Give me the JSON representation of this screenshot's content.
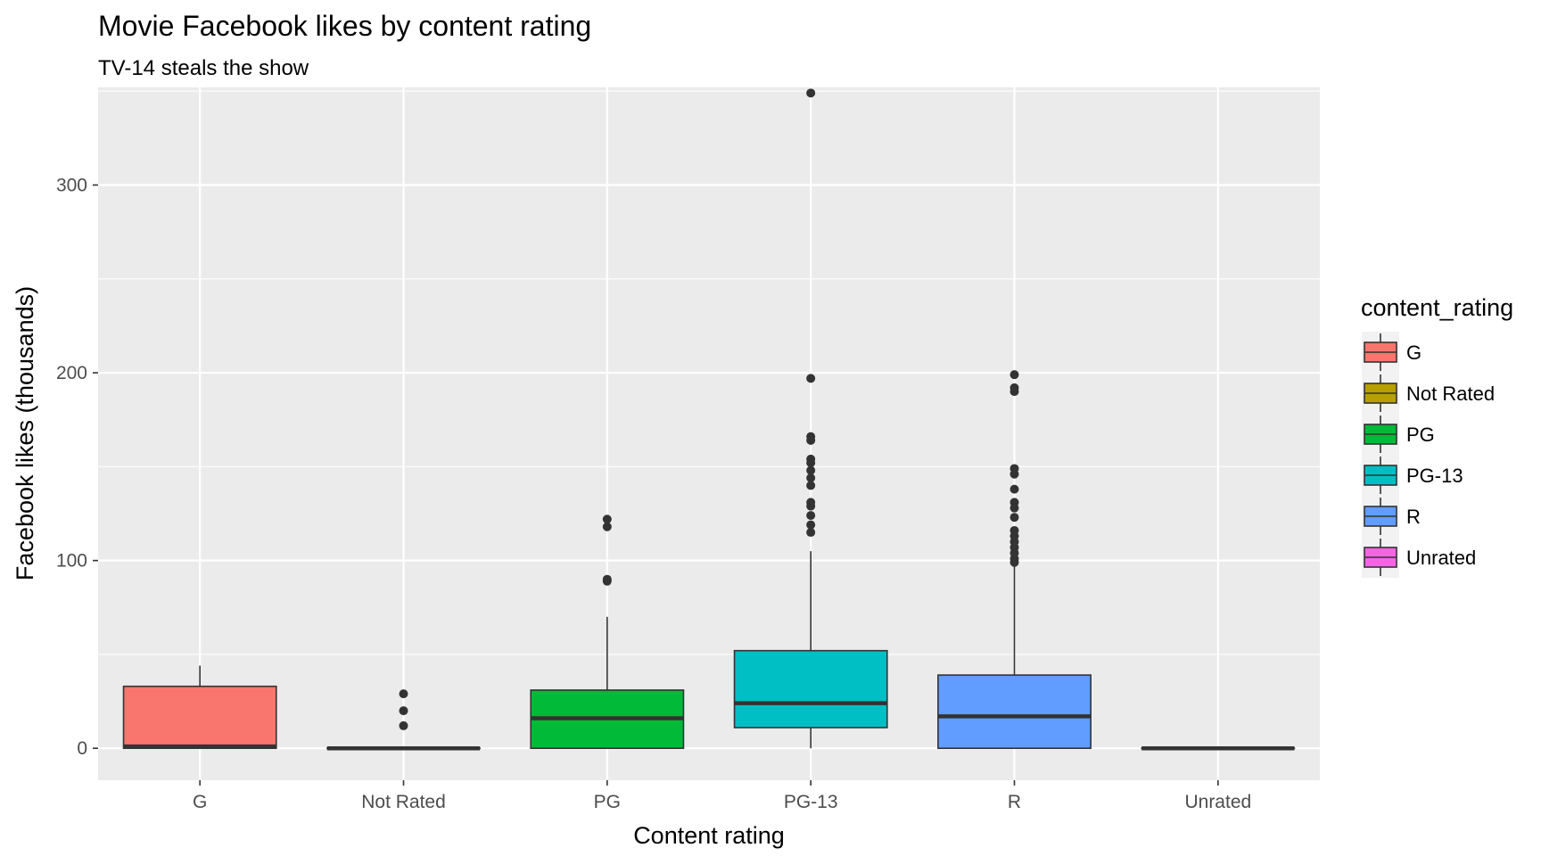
{
  "chart_data": {
    "type": "box",
    "title": "Movie Facebook likes by content rating",
    "subtitle": "TV-14 steals the show",
    "xlabel": "Content rating",
    "ylabel": "Facebook likes (thousands)",
    "ylim": [
      -17,
      352
    ],
    "y_ticks": [
      0,
      100,
      200,
      300
    ],
    "y_tick_labels": [
      "0",
      "100",
      "200",
      "300"
    ],
    "categories": [
      "G",
      "Not Rated",
      "PG",
      "PG-13",
      "R",
      "Unrated"
    ],
    "legend": {
      "title": "content_rating",
      "placement": "right",
      "entries": [
        "G",
        "Not Rated",
        "PG",
        "PG-13",
        "R",
        "Unrated"
      ]
    },
    "colors": {
      "G": "#f8766d",
      "Not Rated": "#b79f00",
      "PG": "#00ba38",
      "PG-13": "#00bfc4",
      "R": "#619cff",
      "Unrated": "#f564e3"
    },
    "panel_background": "#ebebeb",
    "grid": true,
    "boxes": [
      {
        "category": "G",
        "lower_whisker": 0,
        "q1": 0,
        "median": 1,
        "q3": 33,
        "upper_whisker": 44,
        "outliers": []
      },
      {
        "category": "Not Rated",
        "lower_whisker": 0,
        "q1": 0,
        "median": 0,
        "q3": 0,
        "upper_whisker": 0,
        "outliers": [
          12,
          20,
          29
        ]
      },
      {
        "category": "PG",
        "lower_whisker": 0,
        "q1": 0,
        "median": 16,
        "q3": 31,
        "upper_whisker": 70,
        "outliers": [
          89,
          90,
          118,
          122
        ]
      },
      {
        "category": "PG-13",
        "lower_whisker": 0,
        "q1": 11,
        "median": 24,
        "q3": 52,
        "upper_whisker": 105,
        "outliers": [
          115,
          119,
          124,
          129,
          131,
          140,
          144,
          148,
          152,
          154,
          164,
          166,
          197,
          349
        ]
      },
      {
        "category": "R",
        "lower_whisker": 0,
        "q1": 0,
        "median": 17,
        "q3": 39,
        "upper_whisker": 98,
        "outliers": [
          99,
          101,
          104,
          107,
          110,
          113,
          116,
          123,
          128,
          131,
          138,
          146,
          149,
          190,
          192,
          199
        ]
      },
      {
        "category": "Unrated",
        "lower_whisker": 0,
        "q1": 0,
        "median": 0,
        "q3": 0,
        "upper_whisker": 0,
        "outliers": []
      }
    ]
  }
}
